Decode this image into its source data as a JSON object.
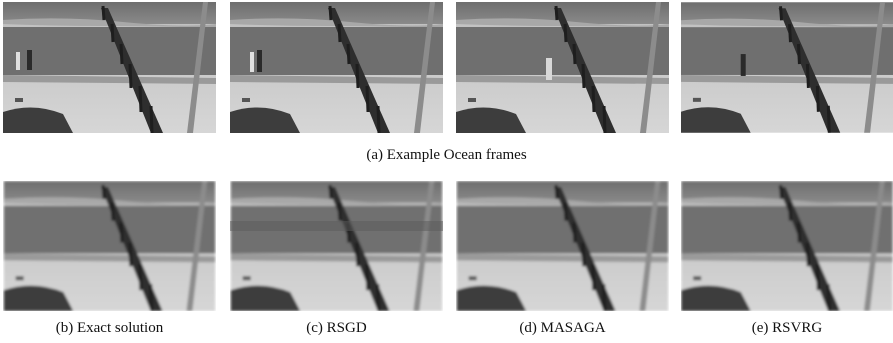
{
  "figure": {
    "top_caption": "(a) Example Ocean frames",
    "bottom_captions": [
      "(b) Exact solution",
      "(c) RSGD",
      "(d) MASAGA",
      "(e) RSVRG"
    ]
  }
}
